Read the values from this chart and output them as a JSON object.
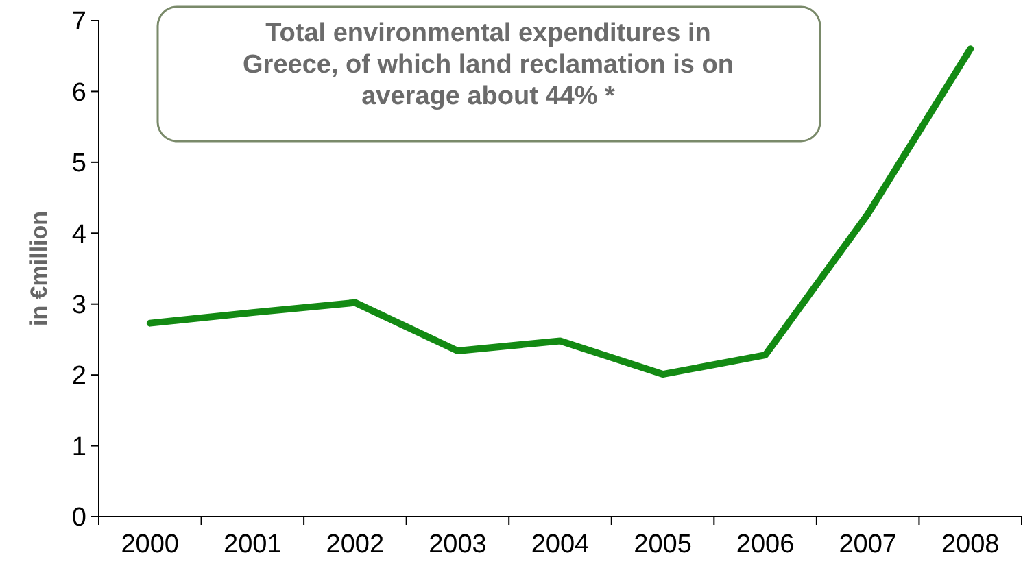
{
  "chart_data": {
    "type": "line",
    "title": "Total environmental expenditures in Greece, of which land reclamation is on average about 44% *",
    "ylabel": "in €million",
    "categories": [
      "2000",
      "2001",
      "2002",
      "2003",
      "2004",
      "2005",
      "2006",
      "2007",
      "2008"
    ],
    "series": [
      {
        "color": "#138a13",
        "values": [
          2.73,
          2.88,
          3.02,
          2.34,
          2.48,
          2.01,
          2.28,
          4.27,
          6.6
        ]
      }
    ],
    "ylim": [
      0,
      7
    ],
    "yticks": [
      0,
      1,
      2,
      3,
      4,
      5,
      6,
      7
    ],
    "marker": "none",
    "line_style": "solid"
  }
}
